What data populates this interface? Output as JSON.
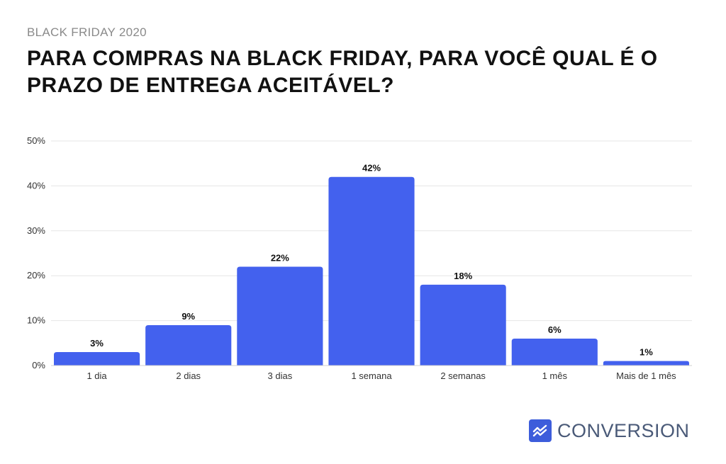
{
  "header": {
    "kicker": "BLACK FRIDAY 2020",
    "title": "PARA COMPRAS NA BLACK FRIDAY, PARA VOCÊ QUAL É O PRAZO DE ENTREGA ACEITÁVEL?"
  },
  "chart_data": {
    "type": "bar",
    "title": "PARA COMPRAS NA BLACK FRIDAY, PARA VOCÊ QUAL É O PRAZO DE ENTREGA ACEITÁVEL?",
    "categories": [
      "1 dia",
      "2 dias",
      "3 dias",
      "1 semana",
      "2 semanas",
      "1 mês",
      "Mais de 1 mês"
    ],
    "values": [
      3,
      9,
      22,
      42,
      18,
      6,
      1
    ],
    "value_labels": [
      "3%",
      "9%",
      "22%",
      "42%",
      "18%",
      "6%",
      "1%"
    ],
    "ylim": [
      0,
      50
    ],
    "yticks": [
      0,
      10,
      20,
      30,
      40,
      50
    ],
    "ytick_labels": [
      "0%",
      "10%",
      "20%",
      "30%",
      "40%",
      "50%"
    ],
    "xlabel": "",
    "ylabel": "",
    "grid": true,
    "bar_color": "#4361ee",
    "grid_color": "#e6e6e6"
  },
  "brand": {
    "name": "CONVERSION",
    "icon": "chart-trend-icon",
    "color": "#3d5ddb"
  }
}
